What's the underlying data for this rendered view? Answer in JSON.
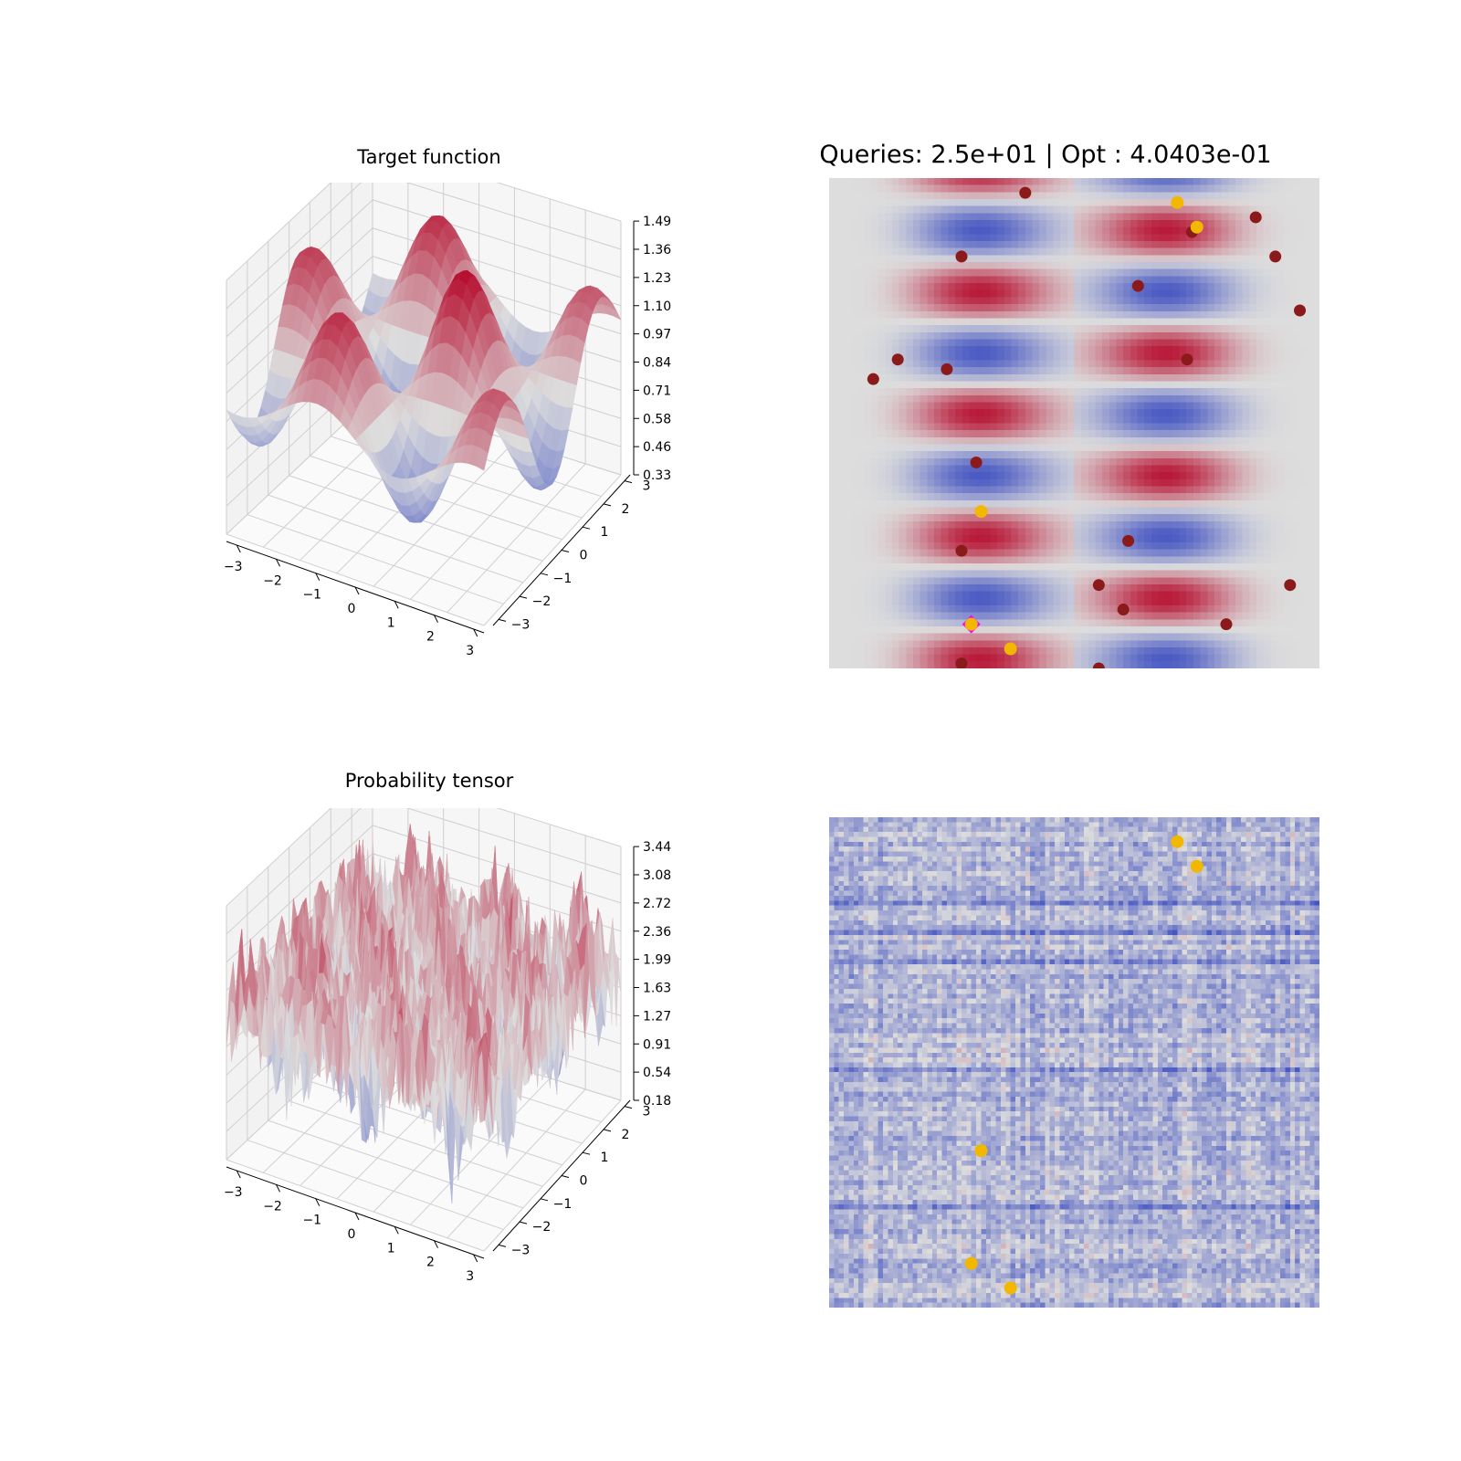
{
  "colors": {
    "cool": "#3b4cc0",
    "neutral": "#dddddd",
    "warm": "#b40426",
    "background_field": "#eed8cc",
    "query_point": "#8b1a1a",
    "best_point": "#f2b800",
    "optimum_marker": "#ff00ff"
  },
  "chart_data": [
    {
      "type": "surface3d",
      "title": "Target function",
      "colormap": "coolwarm",
      "x_ticks": [
        "−3",
        "−2",
        "−1",
        "0",
        "1",
        "2",
        "3"
      ],
      "y_ticks": [
        "−3",
        "−2",
        "−1",
        "0",
        "1",
        "2",
        "3"
      ],
      "z_ticks": [
        "0.33",
        "0.46",
        "0.58",
        "0.71",
        "0.84",
        "0.97",
        "1.10",
        "1.23",
        "1.36",
        "1.49"
      ],
      "xlim": [
        -3.14,
        3.14
      ],
      "ylim": [
        -3.14,
        3.14
      ],
      "zlim": [
        0.33,
        1.49
      ],
      "grid": true
    },
    {
      "type": "heatmap",
      "title": "Queries: 2.5e+01 | Opt :  4.0403e-01",
      "colormap": "coolwarm",
      "axes_visible": false,
      "query_points": [
        [
          0.4,
          0.03
        ],
        [
          0.74,
          0.11
        ],
        [
          0.87,
          0.08
        ],
        [
          0.91,
          0.16
        ],
        [
          0.27,
          0.16
        ],
        [
          0.63,
          0.22
        ],
        [
          0.96,
          0.27
        ],
        [
          0.73,
          0.37
        ],
        [
          0.14,
          0.37
        ],
        [
          0.24,
          0.39
        ],
        [
          0.09,
          0.41
        ],
        [
          0.3,
          0.58
        ],
        [
          0.27,
          0.76
        ],
        [
          0.61,
          0.74
        ],
        [
          0.55,
          0.83
        ],
        [
          0.94,
          0.83
        ],
        [
          0.6,
          0.88
        ],
        [
          0.81,
          0.91
        ],
        [
          0.27,
          0.99
        ],
        [
          0.55,
          1.0
        ]
      ],
      "best_points": [
        [
          0.71,
          0.05
        ],
        [
          0.75,
          0.1
        ],
        [
          0.31,
          0.68
        ],
        [
          0.29,
          0.91
        ],
        [
          0.37,
          0.96
        ]
      ],
      "optimum_point": [
        0.29,
        0.91
      ]
    },
    {
      "type": "surface3d",
      "title": "Probability tensor",
      "colormap": "coolwarm",
      "x_ticks": [
        "−3",
        "−2",
        "−1",
        "0",
        "1",
        "2",
        "3"
      ],
      "y_ticks": [
        "−3",
        "−2",
        "−1",
        "0",
        "1",
        "2",
        "3"
      ],
      "z_ticks": [
        "0.18",
        "0.54",
        "0.91",
        "1.27",
        "1.63",
        "1.99",
        "2.36",
        "2.72",
        "3.08",
        "3.44"
      ],
      "xlim": [
        -3.14,
        3.14
      ],
      "ylim": [
        -3.14,
        3.14
      ],
      "zlim": [
        0.18,
        3.44
      ],
      "grid": true
    },
    {
      "type": "heatmap",
      "title": "",
      "colormap": "coolwarm",
      "axes_visible": false,
      "grid_resolution": 100,
      "best_points": [
        [
          0.71,
          0.05
        ],
        [
          0.75,
          0.1
        ],
        [
          0.31,
          0.68
        ],
        [
          0.29,
          0.91
        ],
        [
          0.37,
          0.96
        ]
      ]
    }
  ]
}
